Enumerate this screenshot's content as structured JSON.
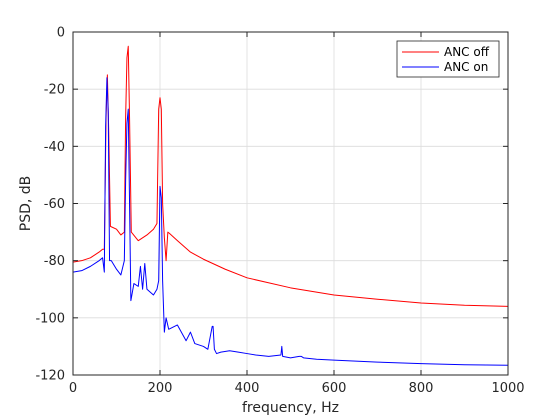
{
  "chart_data": {
    "type": "line",
    "title": "",
    "xlabel": "frequency, Hz",
    "ylabel": "PSD, dB",
    "xlim": [
      0,
      1000
    ],
    "ylim": [
      -120,
      0
    ],
    "xticks": [
      0,
      200,
      400,
      600,
      800,
      1000
    ],
    "yticks": [
      -120,
      -100,
      -80,
      -60,
      -40,
      -20,
      0
    ],
    "grid": true,
    "legend_position": "top-right",
    "series": [
      {
        "name": "ANC off",
        "color": "#ff0000",
        "x": [
          0,
          20,
          40,
          60,
          68,
          72,
          76,
          79,
          82,
          86,
          100,
          110,
          118,
          121,
          124,
          127,
          130,
          134,
          150,
          170,
          185,
          193,
          197,
          200,
          203,
          206,
          210,
          214,
          218,
          222,
          240,
          270,
          300,
          350,
          400,
          500,
          600,
          700,
          800,
          900,
          1000
        ],
        "y": [
          -80.5,
          -80,
          -79,
          -77,
          -76,
          -76,
          -30,
          -15,
          -34,
          -68,
          -69,
          -71,
          -70,
          -30,
          -9,
          -5,
          -30,
          -70,
          -73,
          -71,
          -69,
          -67,
          -27,
          -23,
          -27,
          -60,
          -72,
          -80,
          -70,
          -70.5,
          -73,
          -77,
          -79.5,
          -83,
          -86,
          -89.5,
          -92,
          -93.5,
          -94.8,
          -95.6,
          -96
        ]
      },
      {
        "name": "ANC on",
        "color": "#0000ff",
        "x": [
          0,
          20,
          40,
          60,
          68,
          72,
          75,
          78,
          81,
          84,
          88,
          100,
          110,
          118,
          121,
          124,
          127,
          130,
          133,
          140,
          150,
          155,
          160,
          165,
          170,
          185,
          193,
          197,
          200,
          203,
          206,
          210,
          214,
          220,
          240,
          260,
          270,
          280,
          300,
          310,
          315,
          320,
          322,
          325,
          330,
          340,
          360,
          380,
          400,
          420,
          450,
          478,
          480,
          482,
          500,
          520,
          525,
          530,
          560,
          600,
          700,
          800,
          900,
          1000
        ],
        "y": [
          -84,
          -83.5,
          -82,
          -80,
          -79,
          -84,
          -33,
          -16,
          -28,
          -80,
          -80,
          -83,
          -85,
          -80,
          -52,
          -32,
          -27,
          -60,
          -94,
          -88,
          -89,
          -82,
          -90,
          -81,
          -90,
          -92,
          -90,
          -87,
          -54,
          -58,
          -87,
          -105,
          -100,
          -104,
          -102.5,
          -108,
          -105,
          -109,
          -110,
          -111,
          -107,
          -103,
          -103,
          -111,
          -112.5,
          -112,
          -111.5,
          -112,
          -112.5,
          -113,
          -113.5,
          -113,
          -110,
          -113.5,
          -114,
          -113.5,
          -113.5,
          -114,
          -114.5,
          -114.8,
          -115.5,
          -116,
          -116.4,
          -116.6
        ]
      }
    ]
  }
}
